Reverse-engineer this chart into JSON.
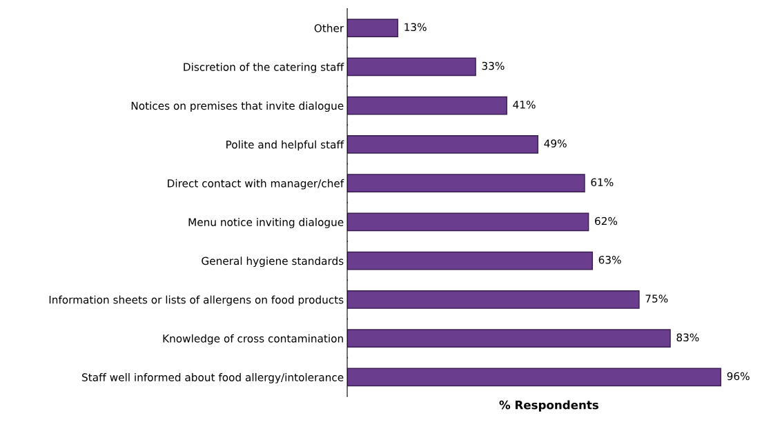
{
  "chart_data": {
    "type": "bar",
    "orientation": "horizontal",
    "xlabel": "% Respondents",
    "categories": [
      "Other",
      "Discretion of the catering staff",
      "Notices on premises that invite dialogue",
      "Polite and helpful staff",
      "Direct contact with manager/chef",
      "Menu notice inviting dialogue",
      "General hygiene standards",
      "Information sheets or lists of allergens on food products",
      "Knowledge of cross contamination",
      "Staff well informed about food allergy/intolerance"
    ],
    "values": [
      13,
      33,
      41,
      49,
      61,
      62,
      63,
      75,
      83,
      96
    ],
    "value_labels": [
      "13%",
      "33%",
      "41%",
      "49%",
      "61%",
      "62%",
      "63%",
      "75%",
      "83%",
      "96%"
    ],
    "color": "#6a3d8f",
    "tick_labels": "y",
    "grid": false,
    "legend": false
  }
}
